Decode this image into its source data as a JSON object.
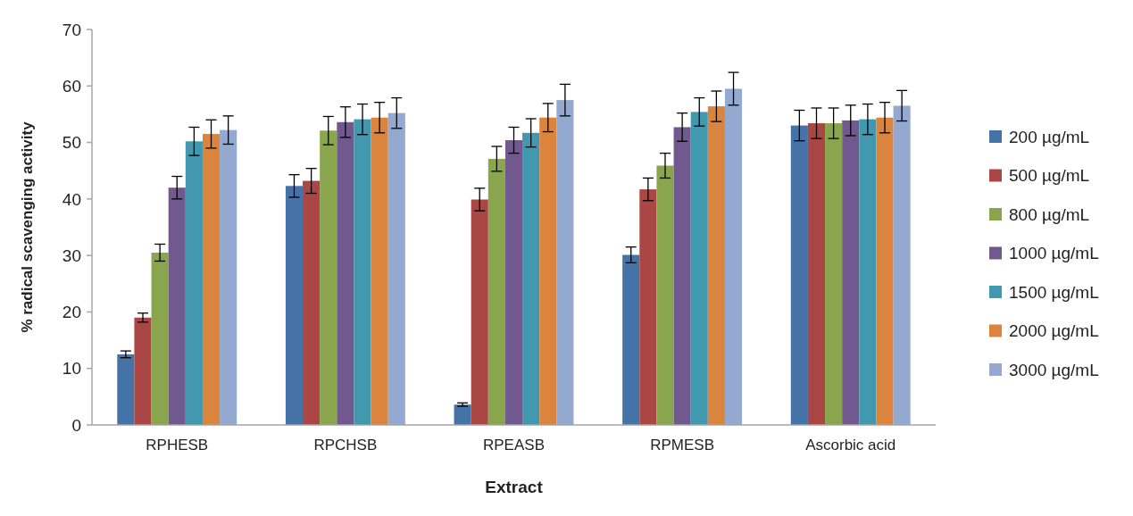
{
  "chart_data": {
    "type": "bar",
    "xlabel": "Extract",
    "ylabel": "% radical scavenging activity",
    "categories": [
      "RPHESB",
      "RPCHSB",
      "RPEASB",
      "RPMESB",
      "Ascorbic acid"
    ],
    "ylim": [
      0,
      70
    ],
    "yticks": [
      0,
      10,
      20,
      30,
      40,
      50,
      60,
      70
    ],
    "grid": false,
    "legend": "right",
    "series": [
      {
        "name": "200 µg/mL",
        "color": "#4572a7",
        "values": [
          12.5,
          42.3,
          3.6,
          30.1,
          53.0
        ],
        "errors": [
          0.6,
          2.0,
          0.3,
          1.4,
          2.7
        ]
      },
      {
        "name": "500 µg/mL",
        "color": "#aa4643",
        "values": [
          19.0,
          43.2,
          39.9,
          41.7,
          53.4
        ],
        "errors": [
          0.8,
          2.2,
          2.0,
          2.0,
          2.7
        ]
      },
      {
        "name": "800 µg/mL",
        "color": "#89a54e",
        "values": [
          30.5,
          52.1,
          47.1,
          45.9,
          53.4
        ],
        "errors": [
          1.5,
          2.5,
          2.2,
          2.2,
          2.7
        ]
      },
      {
        "name": "1000 µg/mL",
        "color": "#71588f",
        "values": [
          42.0,
          53.6,
          50.4,
          52.7,
          53.9
        ],
        "errors": [
          2.0,
          2.7,
          2.3,
          2.5,
          2.7
        ]
      },
      {
        "name": "1500 µg/mL",
        "color": "#4198af",
        "values": [
          50.2,
          54.1,
          51.7,
          55.4,
          54.1
        ],
        "errors": [
          2.5,
          2.7,
          2.5,
          2.5,
          2.7
        ]
      },
      {
        "name": "2000 µg/mL",
        "color": "#db843d",
        "values": [
          51.5,
          54.4,
          54.4,
          56.4,
          54.4
        ],
        "errors": [
          2.5,
          2.7,
          2.5,
          2.7,
          2.7
        ]
      },
      {
        "name": "3000 µg/mL",
        "color": "#93a9cf",
        "values": [
          52.2,
          55.2,
          57.5,
          59.5,
          56.5
        ],
        "errors": [
          2.5,
          2.7,
          2.8,
          2.9,
          2.7
        ]
      }
    ]
  }
}
